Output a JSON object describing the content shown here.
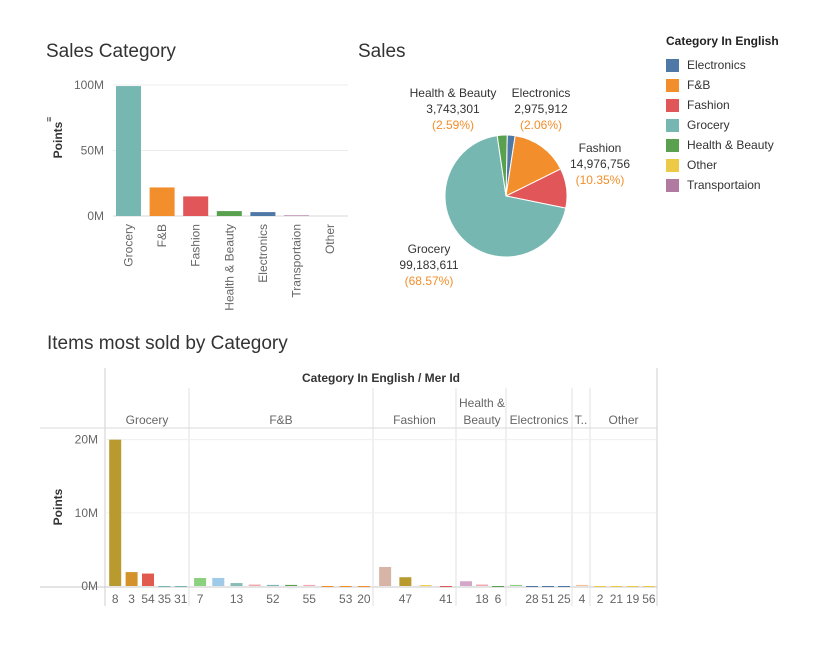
{
  "titles": {
    "sales_category": "Sales Category",
    "sales": "Sales",
    "items_most_sold": "Items most sold by Category"
  },
  "legend": {
    "title": "Category In English",
    "items": [
      {
        "label": "Electronics",
        "color": "#4e79a7"
      },
      {
        "label": "F&B",
        "color": "#f28e2b"
      },
      {
        "label": "Fashion",
        "color": "#e15759"
      },
      {
        "label": "Grocery",
        "color": "#76b7b2"
      },
      {
        "label": "Health & Beauty",
        "color": "#59a14f"
      },
      {
        "label": "Other",
        "color": "#edc948"
      },
      {
        "label": "Transportaion",
        "color": "#b07aa1"
      }
    ]
  },
  "chart_data": [
    {
      "id": "sales-category-bar",
      "type": "bar",
      "title": "Sales Category",
      "ylabel": "Points",
      "ylim": [
        0,
        100000000
      ],
      "yticks": [
        {
          "value": 0,
          "label": "0M"
        },
        {
          "value": 50000000,
          "label": "50M"
        },
        {
          "value": 100000000,
          "label": "100M"
        }
      ],
      "categories": [
        "Grocery",
        "F&B",
        "Fashion",
        "Health & Beauty",
        "Electronics",
        "Transportaion",
        "Other"
      ],
      "values": [
        99183611,
        21800000,
        14976756,
        3743301,
        2975912,
        500000,
        0
      ],
      "colors": [
        "#76b7b2",
        "#f28e2b",
        "#e15759",
        "#59a14f",
        "#4e79a7",
        "#b07aa1",
        "#edc948"
      ]
    },
    {
      "id": "sales-pie",
      "type": "pie",
      "title": "Sales",
      "slices": [
        {
          "label": "Electronics",
          "value": 2975912,
          "value_label": "2,975,912",
          "percent_label": "(2.06%)",
          "color": "#4e79a7"
        },
        {
          "label": "F&B",
          "value": 21800000,
          "color": "#f28e2b"
        },
        {
          "label": "Fashion",
          "value": 14976756,
          "value_label": "14,976,756",
          "percent_label": "(10.35%)",
          "color": "#e15759"
        },
        {
          "label": "Grocery",
          "value": 99183611,
          "value_label": "99,183,611",
          "percent_label": "(68.57%)",
          "color": "#76b7b2"
        },
        {
          "label": "Health & Beauty",
          "value": 3743301,
          "value_label": "3,743,301",
          "percent_label": "(2.59%)",
          "color": "#59a14f"
        }
      ]
    },
    {
      "id": "items-most-sold",
      "type": "bar",
      "title": "Items most sold by Category",
      "header_label": "Category In English  /  Mer Id",
      "ylabel": "Points",
      "ylim": [
        0,
        20500000
      ],
      "yticks": [
        {
          "value": 0,
          "label": "0M"
        },
        {
          "value": 10000000,
          "label": "10M"
        },
        {
          "value": 20000000,
          "label": "20M"
        }
      ],
      "groups": [
        {
          "name": "Grocery",
          "bars": [
            {
              "x": "8",
              "value": 20000000,
              "color": "#b99a2f"
            },
            {
              "x": "3",
              "value": 1900000,
              "color": "#d4932a"
            },
            {
              "x": "54",
              "value": 1700000,
              "color": "#e25a4e"
            },
            {
              "x": "35",
              "value": 0,
              "color": "#76b7b2"
            },
            {
              "x": "31",
              "value": 0,
              "color": "#76b7b2"
            }
          ]
        },
        {
          "name": "F&B",
          "bars": [
            {
              "x": "7",
              "value": 1100000,
              "color": "#8cd17d"
            },
            {
              "x": "",
              "value": 1100000,
              "color": "#a0cbe8"
            },
            {
              "x": "13",
              "value": 400000,
              "color": "#86bcb6"
            },
            {
              "x": "",
              "value": 200000,
              "color": "#f1a8b0"
            },
            {
              "x": "52",
              "value": 150000,
              "color": "#76b7b2"
            },
            {
              "x": "",
              "value": 150000,
              "color": "#59a14f"
            },
            {
              "x": "55",
              "value": 150000,
              "color": "#f1a8b0"
            },
            {
              "x": "",
              "value": 0,
              "color": "#f28e2b"
            },
            {
              "x": "53",
              "value": 0,
              "color": "#f28e2b"
            },
            {
              "x": "20",
              "value": 0,
              "color": "#f28e2b"
            }
          ]
        },
        {
          "name": "Fashion",
          "bars": [
            {
              "x": "",
              "value": 2600000,
              "color": "#d7b5a6"
            },
            {
              "x": "47",
              "value": 1200000,
              "color": "#b99a2f"
            },
            {
              "x": "",
              "value": 120000,
              "color": "#edc948"
            },
            {
              "x": "41",
              "value": 0,
              "color": "#e15759"
            }
          ]
        },
        {
          "name": "Health & Beauty",
          "bars": [
            {
              "x": "",
              "value": 650000,
              "color": "#d4a6c8"
            },
            {
              "x": "18",
              "value": 200000,
              "color": "#f1a8b0"
            },
            {
              "x": "6",
              "value": 0,
              "color": "#59a14f"
            }
          ]
        },
        {
          "name": "Electronics",
          "bars": [
            {
              "x": "",
              "value": 150000,
              "color": "#8cd17d"
            },
            {
              "x": "28",
              "value": 0,
              "color": "#4e79a7"
            },
            {
              "x": "51",
              "value": 0,
              "color": "#4e79a7"
            },
            {
              "x": "25",
              "value": 0,
              "color": "#4e79a7"
            }
          ]
        },
        {
          "name": "T..",
          "bars": [
            {
              "x": "4",
              "value": 150000,
              "color": "#f5c09a"
            }
          ]
        },
        {
          "name": "Other",
          "bars": [
            {
              "x": "2",
              "value": 0,
              "color": "#edc948"
            },
            {
              "x": "21",
              "value": 0,
              "color": "#edc948"
            },
            {
              "x": "19",
              "value": 0,
              "color": "#edc948"
            },
            {
              "x": "56",
              "value": 0,
              "color": "#edc948"
            }
          ]
        }
      ]
    }
  ]
}
